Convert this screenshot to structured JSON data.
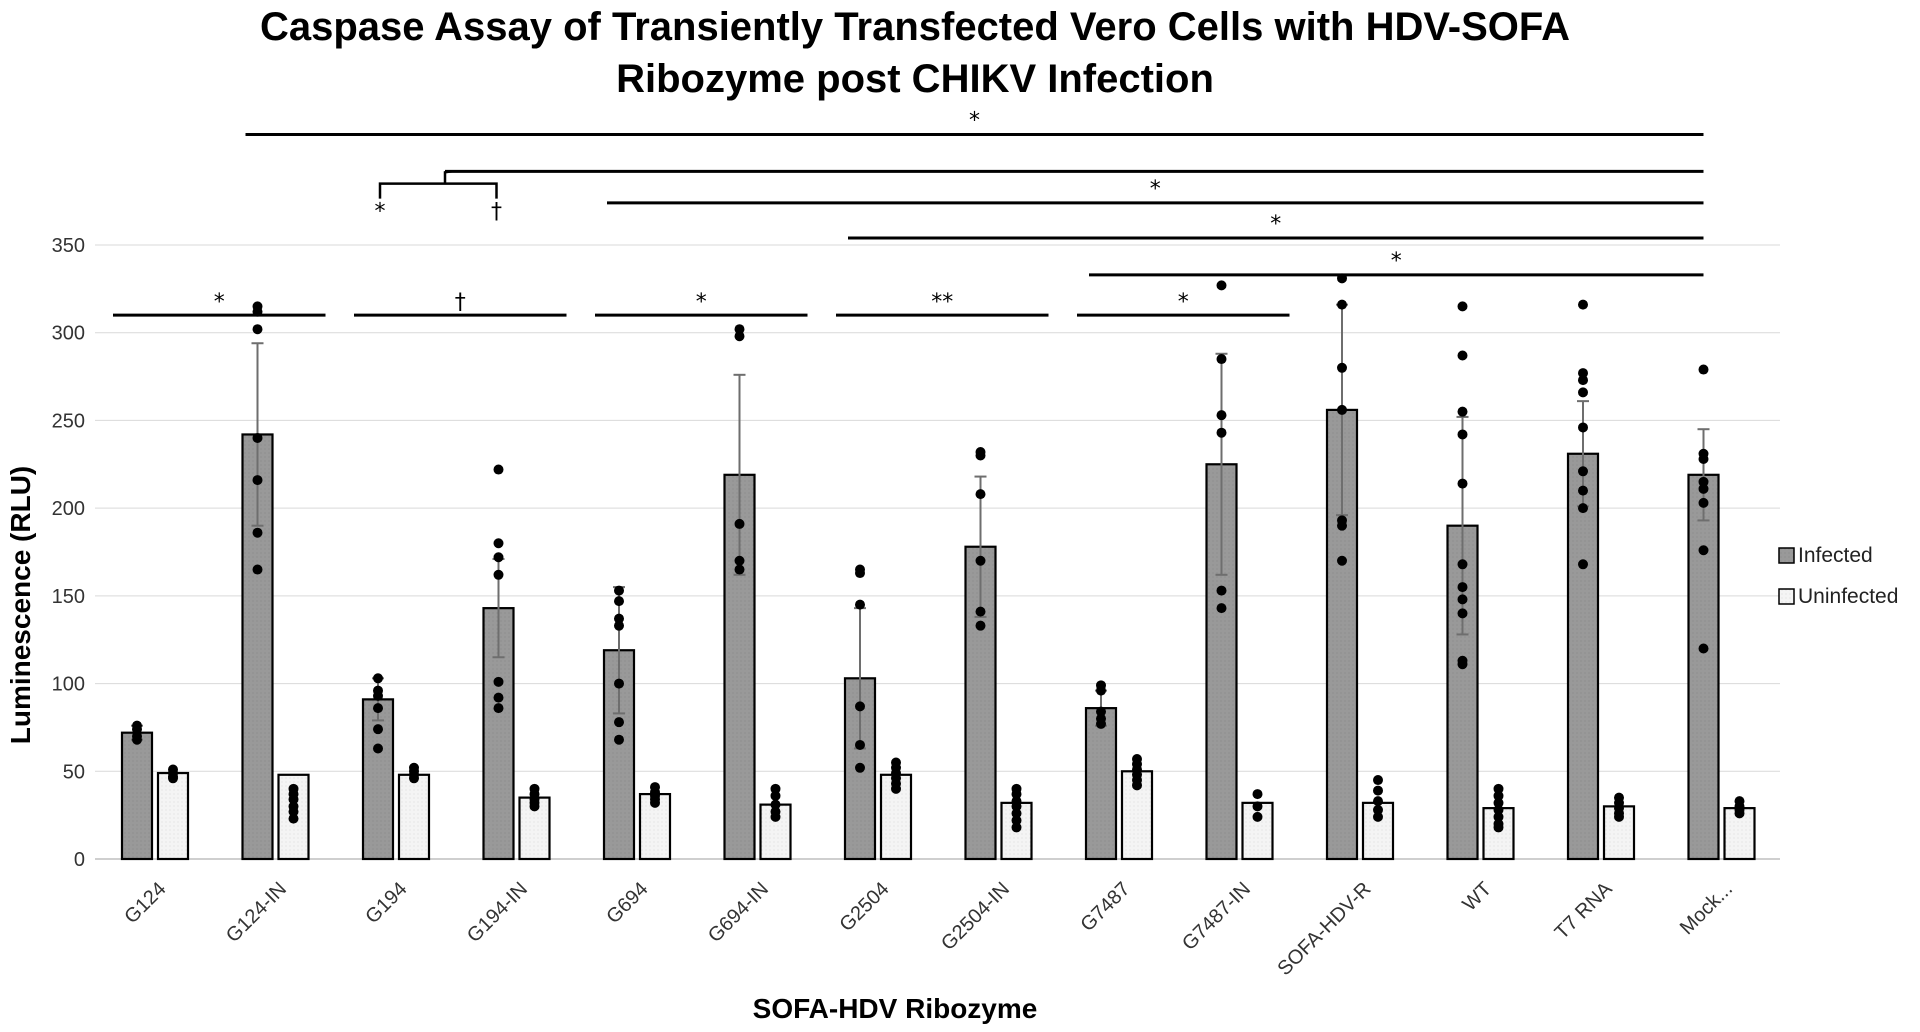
{
  "chart_data": {
    "type": "bar",
    "title_lines": [
      "Caspase Assay of Transiently Transfected Vero Cells with HDV-SOFA",
      "Ribozyme post CHIKV Infection"
    ],
    "xlabel": "SOFA-HDV Ribozyme",
    "ylabel": "Luminescence (RLU)",
    "ylim": [
      0,
      350
    ],
    "yticks": [
      0,
      50,
      100,
      150,
      200,
      250,
      300,
      350
    ],
    "grid": true,
    "legend_position": "right",
    "categories": [
      "G124",
      "G124-IN",
      "G194",
      "G194-IN",
      "G694",
      "G694-IN",
      "G2504",
      "G2504-IN",
      "G7487",
      "G7487-IN",
      "SOFA-HDV-R",
      "WT",
      "T7 RNA",
      "Mock..."
    ],
    "series": [
      {
        "name": "Infected",
        "color": "#999999",
        "values": [
          72,
          242,
          91,
          143,
          119,
          219,
          103,
          178,
          86,
          225,
          256,
          190,
          231,
          219
        ],
        "errors": [
          4,
          52,
          12,
          28,
          36,
          57,
          40,
          40,
          10,
          63,
          60,
          62,
          30,
          26
        ],
        "points": [
          [
            76,
            74,
            70,
            68
          ],
          [
            315,
            312,
            302,
            240,
            216,
            186,
            165
          ],
          [
            103,
            96,
            93,
            86,
            74,
            63
          ],
          [
            222,
            180,
            172,
            162,
            101,
            92,
            86
          ],
          [
            153,
            147,
            137,
            133,
            100,
            78,
            68
          ],
          [
            302,
            298,
            191,
            170,
            165
          ],
          [
            165,
            163,
            145,
            87,
            65,
            52
          ],
          [
            232,
            230,
            208,
            170,
            141,
            133
          ],
          [
            99,
            96,
            84,
            80,
            77
          ],
          [
            327,
            285,
            253,
            243,
            153,
            143
          ],
          [
            331,
            316,
            280,
            256,
            193,
            190,
            170
          ],
          [
            315,
            287,
            255,
            242,
            214,
            168,
            155,
            148,
            140,
            113,
            111
          ],
          [
            316,
            277,
            273,
            266,
            246,
            221,
            210,
            200,
            168
          ],
          [
            279,
            231,
            228,
            215,
            211,
            203,
            176,
            120
          ]
        ]
      },
      {
        "name": "Uninfected",
        "color": "#ffffff",
        "values": [
          49,
          48,
          48,
          35,
          37,
          31,
          48,
          32,
          50,
          32,
          32,
          29,
          30,
          29
        ],
        "errors": [
          0,
          0,
          0,
          0,
          0,
          0,
          0,
          0,
          0,
          0,
          0,
          0,
          0,
          0
        ],
        "points": [
          [
            51,
            49,
            47,
            46
          ],
          [
            40,
            37,
            34,
            30,
            27,
            23
          ],
          [
            52,
            50,
            48,
            46
          ],
          [
            40,
            37,
            34,
            32,
            30
          ],
          [
            41,
            38,
            36,
            34,
            32
          ],
          [
            40,
            36,
            31,
            27,
            24
          ],
          [
            55,
            52,
            49,
            46,
            43,
            40
          ],
          [
            40,
            37,
            33,
            30,
            26,
            22,
            18
          ],
          [
            57,
            54,
            51,
            48,
            45,
            42
          ],
          [
            37,
            30,
            24
          ],
          [
            45,
            39,
            33,
            28,
            24
          ],
          [
            40,
            36,
            32,
            28,
            24,
            20,
            18
          ],
          [
            35,
            32,
            29,
            26,
            24
          ],
          [
            33,
            30,
            28,
            26
          ]
        ]
      }
    ],
    "annotations": [
      {
        "type": "pair",
        "from": 0,
        "to": 1,
        "value": 310,
        "label": "*"
      },
      {
        "type": "pair",
        "from": 2,
        "to": 3,
        "value": 310,
        "label": "†"
      },
      {
        "type": "pair",
        "from": 4,
        "to": 5,
        "value": 310,
        "label": "*"
      },
      {
        "type": "pair",
        "from": 6,
        "to": 7,
        "value": 310,
        "label": "**"
      },
      {
        "type": "pair",
        "from": 8,
        "to": 9,
        "value": 310,
        "label": "*"
      },
      {
        "type": "span",
        "from": 1,
        "to": 13,
        "value": 413,
        "label": "*"
      },
      {
        "type": "span",
        "from": 2.5,
        "to": 13,
        "value": 392,
        "label": ""
      },
      {
        "type": "span",
        "from": 4,
        "to": 13,
        "value": 374,
        "label": "*"
      },
      {
        "type": "span",
        "from": 6,
        "to": 13,
        "value": 354,
        "label": "*"
      },
      {
        "type": "span",
        "from": 8,
        "to": 13,
        "value": 333,
        "label": "*"
      },
      {
        "type": "bracket",
        "from": 2,
        "to": 3,
        "value": 385,
        "label_left": "*",
        "label_right": "†"
      }
    ]
  }
}
